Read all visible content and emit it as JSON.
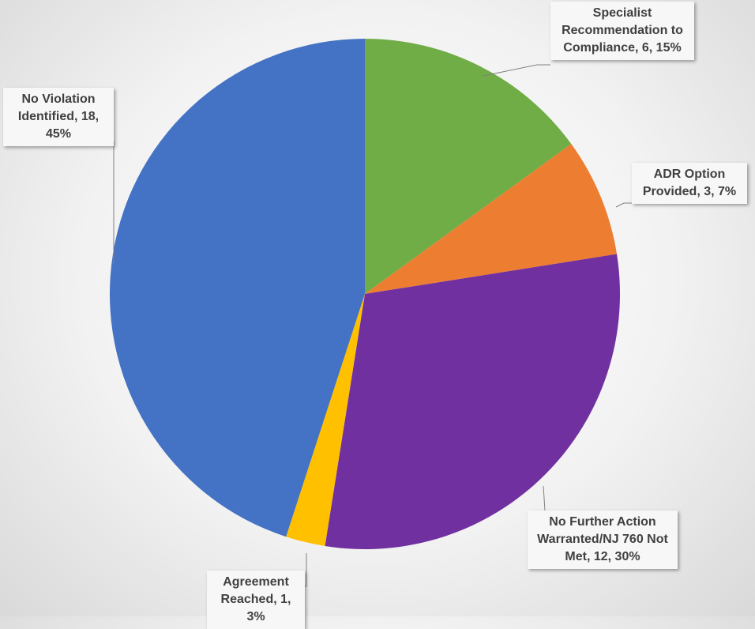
{
  "chart_data": {
    "type": "pie",
    "values": [
      6,
      3,
      12,
      1,
      18
    ],
    "value_labels": [
      "Specialist Recommendation to Compliance, 6, 15%",
      "ADR Option Provided, 3, 7%",
      "No Further Action Warranted/NJ 760 Not Met, 12, 30%",
      "Agreement Reached, 1, 3%",
      "No Violation Identified, 18, 45%"
    ],
    "colors": [
      "#70ad47",
      "#ed7d31",
      "#7030a0",
      "#ffc000",
      "#4472c4"
    ]
  }
}
